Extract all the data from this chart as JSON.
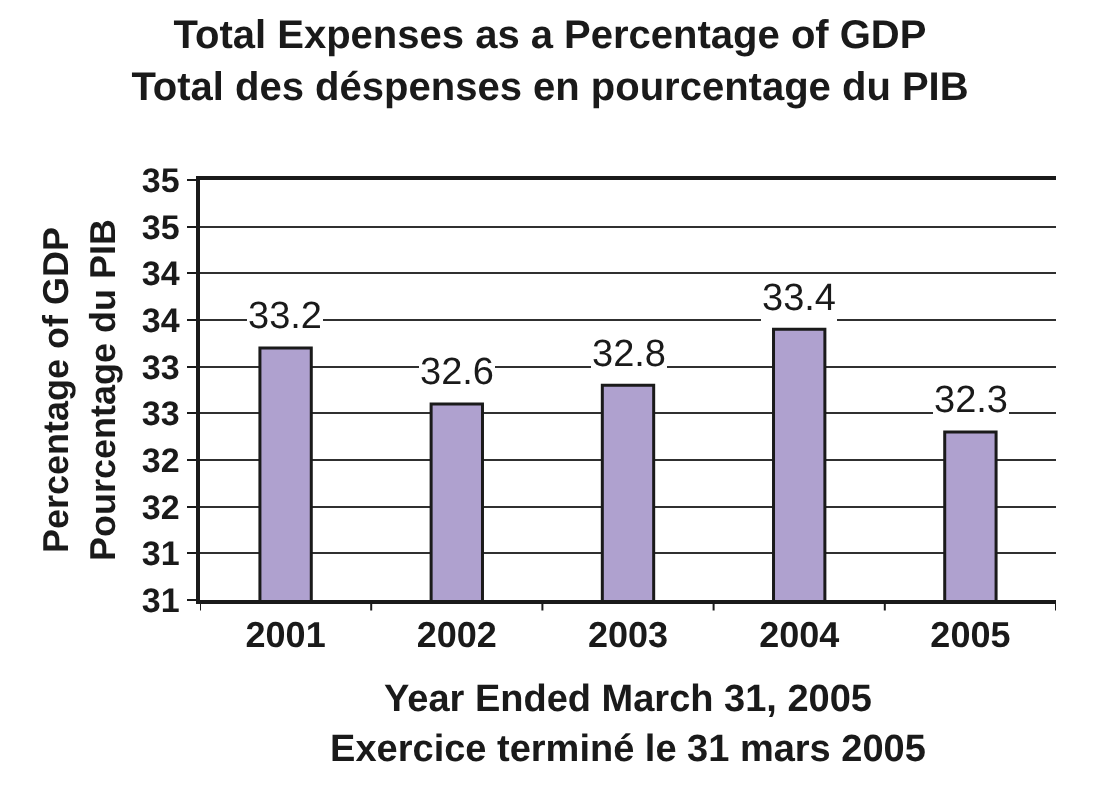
{
  "chart_data": {
    "type": "bar",
    "title": "Total Expenses as a Percentage of GDP\nTotal des déspenses en pourcentage du PIB",
    "xlabel": "Year Ended March 31, 2005\nExercice terminé le 31 mars 2005",
    "ylabel": "Percentage of GDP\nPourcentage du PIB",
    "categories": [
      "2001",
      "2002",
      "2003",
      "2004",
      "2005"
    ],
    "values": [
      33.2,
      32.6,
      32.8,
      33.4,
      32.3
    ],
    "color": "#afa1cf",
    "data_labels": true,
    "ylim": [
      30.5,
      35
    ],
    "yticks": [
      {
        "value": 30.5,
        "label": "31"
      },
      31,
      {
        "value": 31.5,
        "label": "32"
      },
      32,
      {
        "value": 32.5,
        "label": "33"
      },
      33,
      {
        "value": 33.5,
        "label": "34"
      },
      34,
      {
        "value": 34.5,
        "label": "35"
      },
      35
    ],
    "grid": "y"
  }
}
